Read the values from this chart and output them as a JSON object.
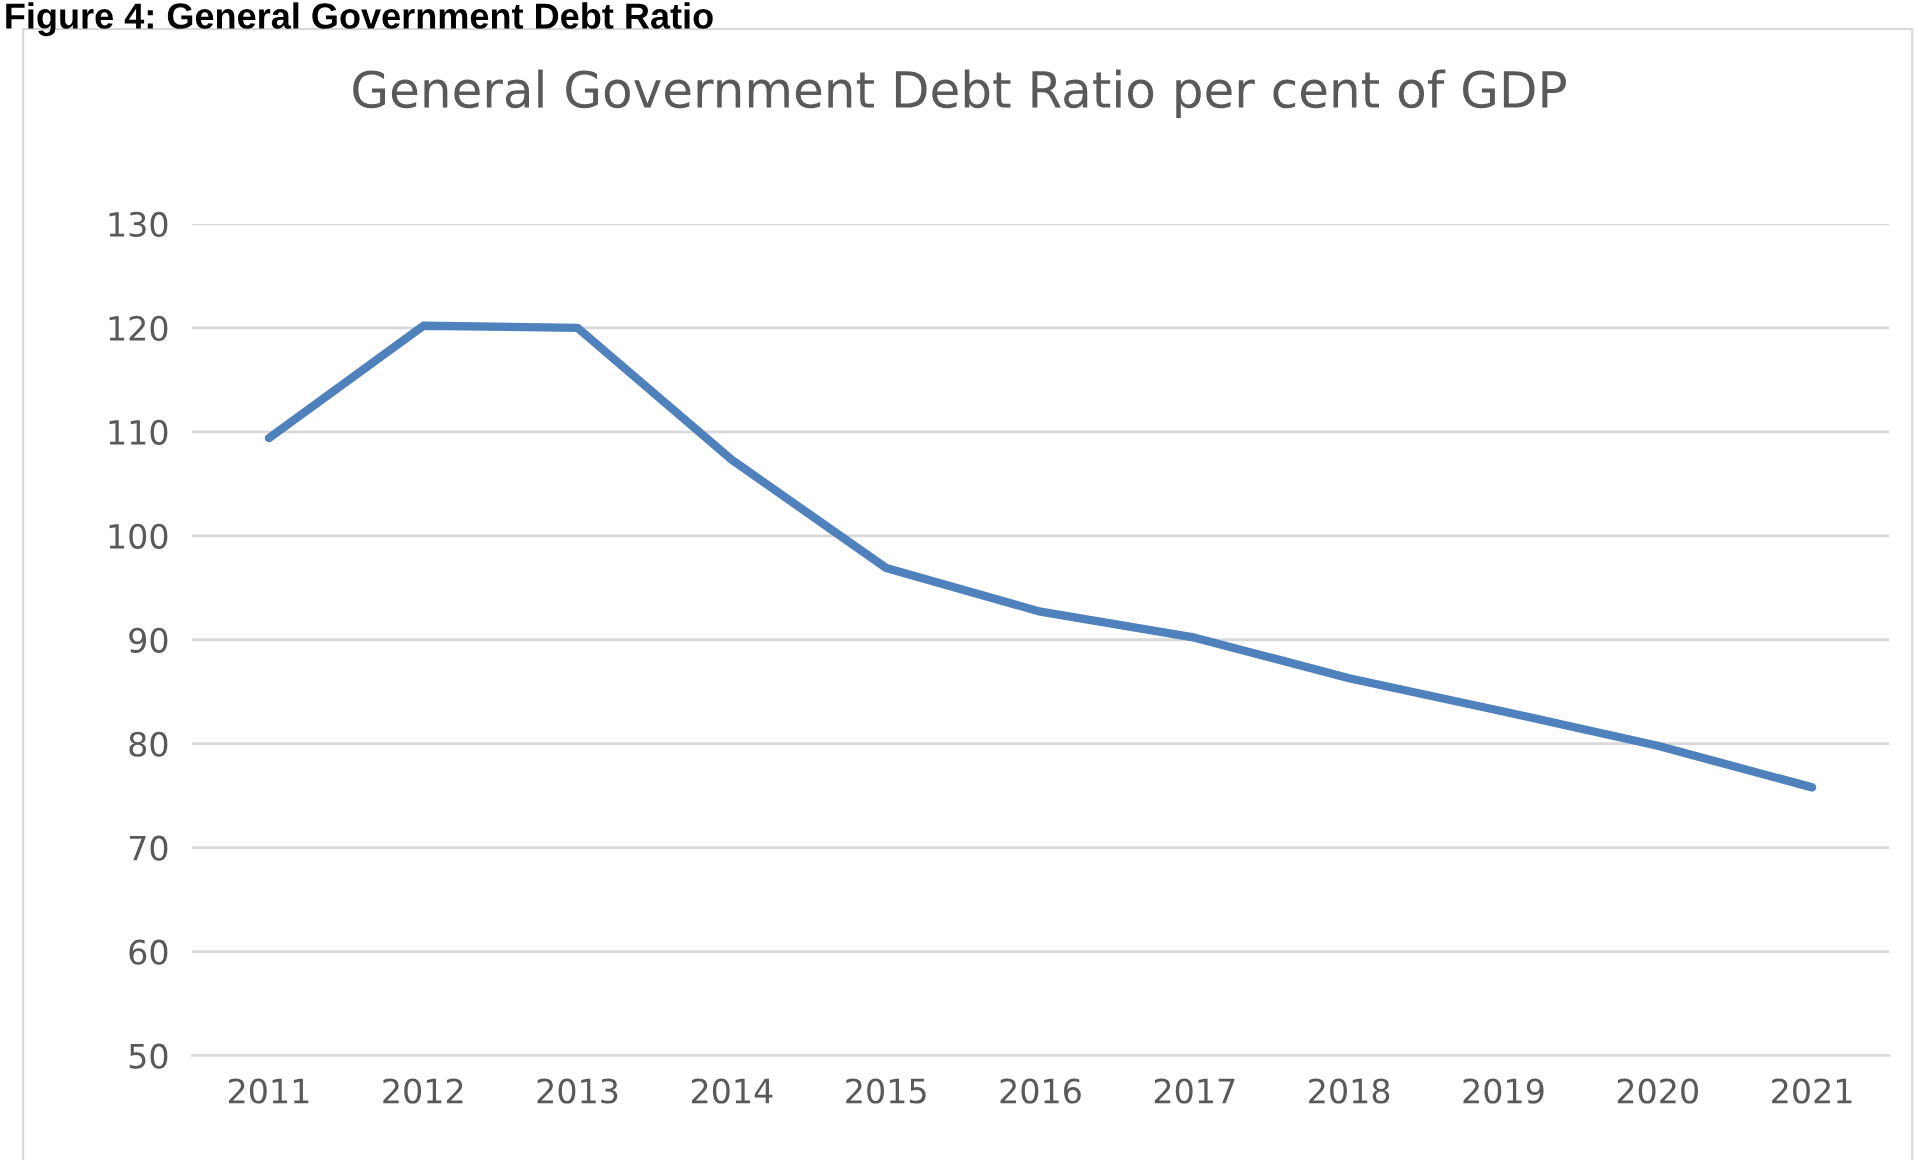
{
  "chart_data": {
    "type": "line",
    "title": "General Government Debt Ratio per cent of GDP",
    "annotations": [
      "Figure 4: General Government Debt Ratio"
    ],
    "categories": [
      "2011",
      "2012",
      "2013",
      "2014",
      "2015",
      "2016",
      "2017",
      "2018",
      "2019",
      "2020",
      "2021"
    ],
    "series": [
      {
        "color": "#4f81bd",
        "values": [
          109.4,
          120.2,
          120.0,
          107.3,
          96.9,
          92.7,
          90.2,
          86.3,
          83.1,
          79.8,
          75.8
        ]
      }
    ],
    "ylim": [
      50,
      130
    ],
    "yticks": [
      50,
      60,
      70,
      80,
      90,
      100,
      110,
      120,
      130
    ],
    "grid": "y",
    "legend": false,
    "marker": "none",
    "line_style": "solid"
  }
}
